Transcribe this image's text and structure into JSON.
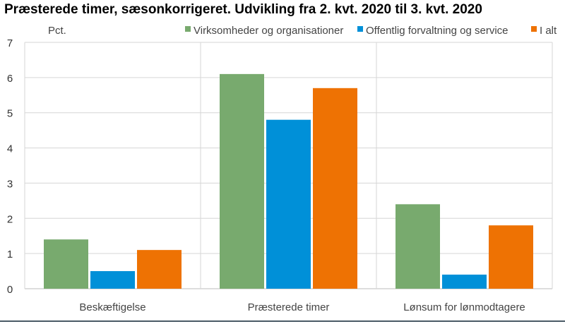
{
  "chart_data": {
    "type": "bar",
    "title": "Præsterede timer, sæsonkorrigeret. Udvikling fra 2. kvt. 2020 til 3. kvt. 2020",
    "ylabel": "Pct.",
    "xlabel": "",
    "ylim": [
      0,
      7
    ],
    "yticks": [
      "0",
      "1",
      "2",
      "3",
      "4",
      "5",
      "6",
      "7"
    ],
    "categories": [
      "Beskæftigelse",
      "Præsterede timer",
      "Lønsum for lønmodtagere"
    ],
    "series": [
      {
        "name": "Virksomheder og organisationer",
        "color": "#78aa6e",
        "values": [
          1.4,
          6.1,
          2.4
        ]
      },
      {
        "name": "Offentlig forvaltning og service",
        "color": "#0090d8",
        "values": [
          0.5,
          4.8,
          0.4
        ]
      },
      {
        "name": "I alt",
        "color": "#ee7203",
        "values": [
          1.1,
          5.7,
          1.8
        ]
      }
    ],
    "grid": true,
    "legend": "top-right"
  }
}
